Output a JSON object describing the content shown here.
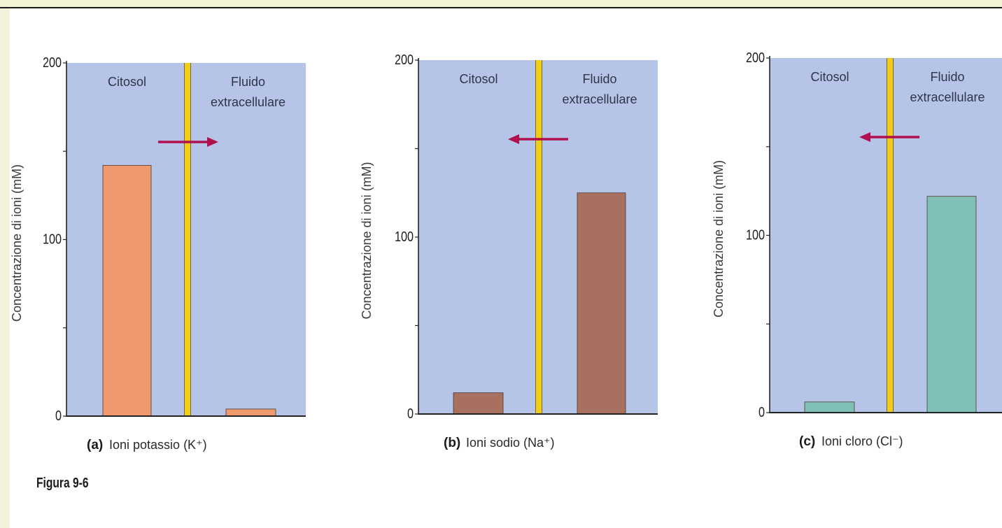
{
  "figure_label": "Figura 9-6",
  "chart_data": [
    {
      "type": "bar",
      "panel_letter": "(a)",
      "caption": "Ioni potassio (K⁺)",
      "ylabel": "Concentrazione di ioni (mM)",
      "ylim": [
        0,
        200
      ],
      "yticks": [
        "0",
        "100",
        "200"
      ],
      "region_labels": [
        "Citosol",
        "Fluido extracellulare"
      ],
      "categories": [
        "Citosol",
        "Fluido extracellulare"
      ],
      "values": [
        142,
        4
      ],
      "bar_color": "#ee9a6c",
      "arrow_direction": "right"
    },
    {
      "type": "bar",
      "panel_letter": "(b)",
      "caption": "Ioni sodio (Na⁺)",
      "ylabel": "Concentrazione di ioni (mM)",
      "ylim": [
        0,
        200
      ],
      "yticks": [
        "0",
        "100",
        "200"
      ],
      "region_labels": [
        "Citosol",
        "Fluido extracellulare"
      ],
      "categories": [
        "Citosol",
        "Fluido extracellulare"
      ],
      "values": [
        12,
        125
      ],
      "bar_color": "#a8705e",
      "arrow_direction": "left"
    },
    {
      "type": "bar",
      "panel_letter": "(c)",
      "caption": "Ioni cloro (Cl⁻)",
      "ylabel": "Concentrazione di ioni (mM)",
      "ylim": [
        0,
        200
      ],
      "yticks": [
        "0",
        "100",
        "200"
      ],
      "region_labels": [
        "Citosol",
        "Fluido extracellulare"
      ],
      "categories": [
        "Citosol",
        "Fluido extracellulare"
      ],
      "values": [
        6,
        122
      ],
      "bar_color": "#7fbfb6",
      "arrow_direction": "left"
    }
  ],
  "colors": {
    "panel_background": "#b6c4e8",
    "membrane": "#f0cc1c",
    "arrow": "#b0104e",
    "axis": "#222222"
  }
}
